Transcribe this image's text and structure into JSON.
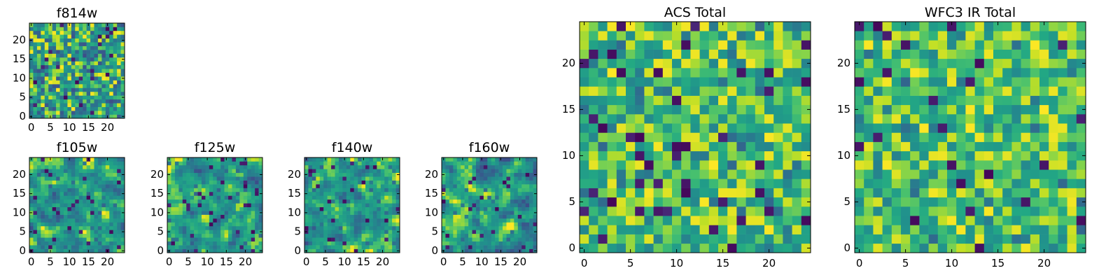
{
  "figure": {
    "background": "#ffffff",
    "colormap": "viridis"
  },
  "chart_data": [
    {
      "id": "f814w",
      "type": "heatmap",
      "title": "f814w",
      "size": 25,
      "xlim": [
        0,
        24
      ],
      "ylim": [
        0,
        24
      ],
      "xticks": [
        "0",
        "5",
        "10",
        "15",
        "20"
      ],
      "yticks": [
        "0",
        "5",
        "10",
        "15",
        "20"
      ],
      "grid": false,
      "seed": 11,
      "texture": "fine"
    },
    {
      "id": "f105w",
      "type": "heatmap",
      "title": "f105w",
      "size": 25,
      "xlim": [
        0,
        24
      ],
      "ylim": [
        0,
        24
      ],
      "xticks": [
        "0",
        "5",
        "10",
        "15",
        "20"
      ],
      "yticks": [
        "0",
        "5",
        "10",
        "15",
        "20"
      ],
      "grid": false,
      "seed": 23,
      "texture": "smooth"
    },
    {
      "id": "f125w",
      "type": "heatmap",
      "title": "f125w",
      "size": 25,
      "xlim": [
        0,
        24
      ],
      "ylim": [
        0,
        24
      ],
      "xticks": [
        "0",
        "5",
        "10",
        "15",
        "20"
      ],
      "yticks": [
        "0",
        "5",
        "10",
        "15",
        "20"
      ],
      "grid": false,
      "seed": 37,
      "texture": "smooth"
    },
    {
      "id": "f140w",
      "type": "heatmap",
      "title": "f140w",
      "size": 25,
      "xlim": [
        0,
        24
      ],
      "ylim": [
        0,
        24
      ],
      "xticks": [
        "0",
        "5",
        "10",
        "15",
        "20"
      ],
      "yticks": [
        "0",
        "5",
        "10",
        "15",
        "20"
      ],
      "grid": false,
      "seed": 41,
      "texture": "smooth"
    },
    {
      "id": "f160w",
      "type": "heatmap",
      "title": "f160w",
      "size": 25,
      "xlim": [
        0,
        24
      ],
      "ylim": [
        0,
        24
      ],
      "xticks": [
        "0",
        "5",
        "10",
        "15",
        "20"
      ],
      "yticks": [
        "0",
        "5",
        "10",
        "15",
        "20"
      ],
      "grid": false,
      "seed": 53,
      "texture": "smooth"
    },
    {
      "id": "acs-total",
      "type": "heatmap",
      "title": "ACS Total",
      "size": 25,
      "xlim": [
        0,
        24
      ],
      "ylim": [
        0,
        24
      ],
      "xticks": [
        "0",
        "5",
        "10",
        "15",
        "20"
      ],
      "yticks": [
        "0",
        "5",
        "10",
        "15",
        "20"
      ],
      "grid": false,
      "seed": 67,
      "texture": "bright"
    },
    {
      "id": "wfc3-ir-total",
      "type": "heatmap",
      "title": "WFC3 IR Total",
      "size": 25,
      "xlim": [
        0,
        24
      ],
      "ylim": [
        0,
        24
      ],
      "xticks": [
        "0",
        "5",
        "10",
        "15",
        "20"
      ],
      "yticks": [
        "0",
        "5",
        "10",
        "15",
        "20"
      ],
      "grid": false,
      "seed": 79,
      "texture": "bright"
    }
  ]
}
